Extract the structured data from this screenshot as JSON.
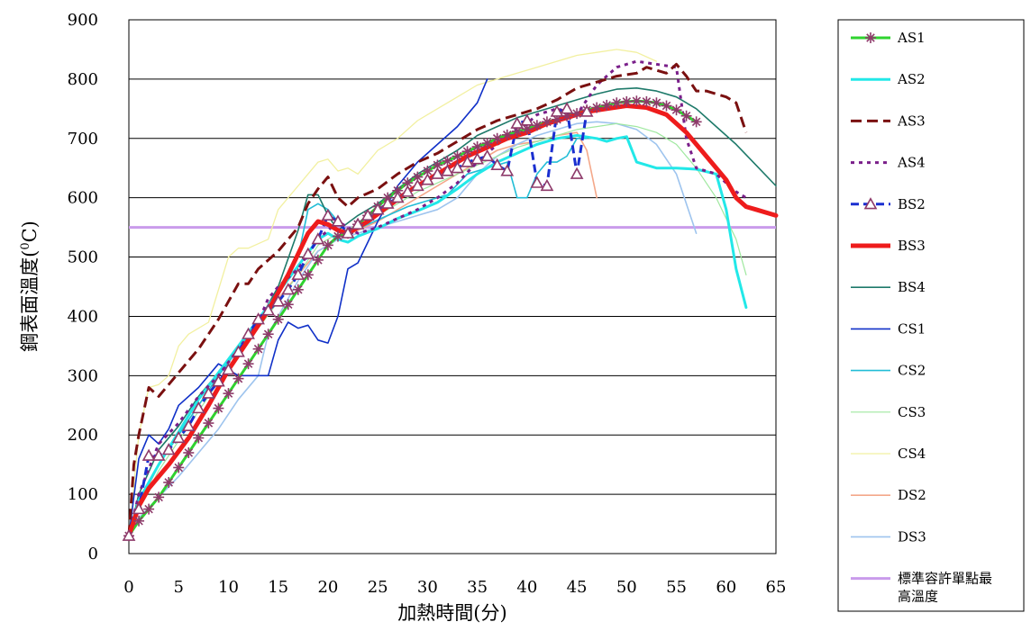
{
  "chart_data": {
    "type": "line",
    "title": "",
    "xlabel": "加熱時間(分)",
    "ylabel_main": "鋼表面溫度(",
    "ylabel_sup": "0",
    "ylabel_tail": "C)",
    "xlim": [
      0,
      65
    ],
    "ylim": [
      0,
      900
    ],
    "x_ticks": [
      "0",
      "5",
      "10",
      "15",
      "20",
      "25",
      "30",
      "35",
      "40",
      "45",
      "50",
      "55",
      "60",
      "65"
    ],
    "y_ticks": [
      "0",
      "100",
      "200",
      "300",
      "400",
      "500",
      "600",
      "700",
      "800",
      "900"
    ],
    "grid": "horizontal",
    "legend_position": "right",
    "reference_line": {
      "name": "標準容許單點最高溫度",
      "value": 550,
      "color": "#C99BEB"
    },
    "series": [
      {
        "name": "AS1",
        "color": "#2FD32F",
        "width": 3,
        "dash": "",
        "marker": "asterisk",
        "marker_color": "#8E3A6A",
        "x": [
          0,
          1,
          2,
          3,
          4,
          5,
          6,
          7,
          8,
          9,
          10,
          11,
          12,
          13,
          14,
          15,
          16,
          17,
          18,
          19,
          20,
          21,
          22,
          23,
          24,
          25,
          26,
          27,
          28,
          29,
          30,
          31,
          32,
          33,
          34,
          35,
          36,
          37,
          38,
          39,
          40,
          41,
          42,
          43,
          44,
          45,
          46,
          47,
          48,
          49,
          50,
          51,
          52,
          53,
          54,
          55,
          56,
          57
        ],
        "y": [
          30,
          55,
          75,
          95,
          120,
          145,
          170,
          195,
          220,
          245,
          270,
          295,
          320,
          345,
          370,
          395,
          420,
          445,
          470,
          495,
          520,
          535,
          540,
          555,
          570,
          585,
          600,
          612,
          625,
          635,
          645,
          655,
          662,
          670,
          678,
          686,
          692,
          700,
          706,
          712,
          716,
          722,
          728,
          732,
          738,
          742,
          748,
          752,
          756,
          760,
          762,
          763,
          762,
          760,
          755,
          748,
          738,
          728
        ]
      },
      {
        "name": "AS2",
        "color": "#22E8E8",
        "width": 3,
        "dash": "",
        "marker": "",
        "x": [
          0,
          1,
          3,
          5,
          7,
          9,
          11,
          13,
          15,
          17,
          19,
          20,
          21,
          22,
          23,
          25,
          27,
          29,
          31,
          33,
          35,
          37,
          39,
          41,
          43,
          45,
          47,
          48,
          49,
          50,
          51,
          53,
          55,
          57,
          59,
          60,
          61,
          62
        ],
        "y": [
          30,
          90,
          150,
          205,
          260,
          305,
          350,
          395,
          440,
          485,
          530,
          540,
          530,
          525,
          535,
          548,
          565,
          578,
          592,
          615,
          640,
          660,
          675,
          690,
          700,
          705,
          700,
          695,
          700,
          703,
          660,
          650,
          650,
          648,
          640,
          580,
          480,
          415
        ]
      },
      {
        "name": "AS3",
        "color": "#7A1010",
        "width": 3,
        "dash": "12,6",
        "marker": "",
        "x": [
          0,
          0.5,
          1,
          2,
          3,
          4,
          5,
          7,
          9,
          11,
          12,
          13,
          15,
          17,
          18,
          19,
          20,
          21,
          22,
          23,
          25,
          27,
          29,
          31,
          33,
          35,
          37,
          39,
          41,
          43,
          45,
          47,
          49,
          51,
          52,
          53,
          54,
          55,
          56,
          57,
          58,
          59,
          60,
          61,
          62
        ],
        "y": [
          30,
          150,
          200,
          280,
          265,
          285,
          305,
          345,
          395,
          455,
          455,
          480,
          510,
          550,
          590,
          615,
          635,
          600,
          585,
          600,
          615,
          640,
          660,
          675,
          695,
          715,
          730,
          740,
          750,
          765,
          785,
          795,
          805,
          810,
          820,
          815,
          810,
          825,
          805,
          780,
          780,
          775,
          770,
          760,
          710
        ]
      },
      {
        "name": "AS4",
        "color": "#7A1F8A",
        "width": 3,
        "dash": "4,5",
        "marker": "",
        "x": [
          0,
          1,
          3,
          5,
          7,
          9,
          11,
          13,
          14,
          15,
          17,
          19,
          21,
          23,
          25,
          27,
          29,
          31,
          33,
          35,
          37,
          39,
          41,
          43,
          45,
          47,
          49,
          51,
          53,
          55,
          56,
          57,
          59,
          61,
          62
        ],
        "y": [
          30,
          100,
          185,
          220,
          265,
          300,
          345,
          390,
          430,
          450,
          480,
          530,
          560,
          540,
          550,
          565,
          580,
          600,
          625,
          660,
          690,
          710,
          740,
          750,
          740,
          790,
          820,
          830,
          825,
          820,
          700,
          650,
          640,
          610,
          600
        ]
      },
      {
        "name": "BS2",
        "color": "#1A2FD0",
        "width": 3,
        "dash": "9,5",
        "marker": "triangle",
        "marker_color": "#8E3A6A",
        "x": [
          0,
          1,
          2,
          3,
          4,
          5,
          6,
          7,
          8,
          9,
          10,
          11,
          12,
          13,
          14,
          15,
          16,
          17,
          18,
          19,
          20,
          21,
          22,
          23,
          24,
          25,
          26,
          27,
          28,
          29,
          30,
          31,
          32,
          33,
          34,
          35,
          36,
          37,
          38,
          39,
          40,
          41,
          42,
          43,
          44,
          45,
          46
        ],
        "y": [
          30,
          75,
          165,
          165,
          175,
          195,
          215,
          245,
          270,
          290,
          310,
          340,
          370,
          395,
          410,
          425,
          445,
          470,
          505,
          530,
          570,
          560,
          540,
          555,
          570,
          580,
          590,
          600,
          610,
          620,
          630,
          640,
          645,
          650,
          660,
          665,
          670,
          655,
          645,
          725,
          730,
          625,
          620,
          745,
          750,
          640,
          745
        ]
      },
      {
        "name": "BS3",
        "color": "#EE1C1C",
        "width": 5,
        "dash": "",
        "marker": "",
        "x": [
          0,
          1,
          2,
          4,
          6,
          8,
          10,
          12,
          14,
          16,
          18,
          19,
          20,
          21,
          22,
          24,
          26,
          28,
          30,
          32,
          34,
          36,
          38,
          40,
          42,
          44,
          46,
          48,
          50,
          52,
          54,
          56,
          58,
          60,
          61,
          62,
          63,
          65
        ],
        "y": [
          30,
          80,
          110,
          150,
          195,
          250,
          310,
          360,
          410,
          470,
          540,
          560,
          555,
          545,
          540,
          560,
          585,
          610,
          630,
          650,
          670,
          685,
          700,
          710,
          725,
          735,
          745,
          750,
          755,
          752,
          740,
          710,
          670,
          630,
          600,
          585,
          580,
          570
        ]
      },
      {
        "name": "BS4",
        "color": "#1E7A6A",
        "width": 1.6,
        "dash": "",
        "marker": "",
        "x": [
          0,
          1,
          3,
          5,
          7,
          9,
          11,
          13,
          15,
          17,
          18,
          19,
          20,
          21,
          23,
          25,
          27,
          29,
          31,
          33,
          35,
          37,
          39,
          41,
          43,
          45,
          47,
          49,
          51,
          53,
          55,
          57,
          59,
          61,
          63,
          65
        ],
        "y": [
          30,
          100,
          175,
          215,
          265,
          305,
          350,
          390,
          450,
          545,
          605,
          605,
          570,
          545,
          570,
          590,
          615,
          640,
          660,
          680,
          705,
          720,
          735,
          745,
          755,
          765,
          775,
          783,
          785,
          780,
          770,
          750,
          720,
          690,
          655,
          620
        ]
      },
      {
        "name": "CS1",
        "color": "#1030C8",
        "width": 1.6,
        "dash": "",
        "marker": "",
        "x": [
          0,
          1,
          2,
          3,
          4,
          5,
          7,
          9,
          10,
          11,
          13,
          14,
          15,
          16,
          17,
          18,
          19,
          20,
          21,
          22,
          23,
          25,
          27,
          29,
          31,
          33,
          35,
          36
        ],
        "y": [
          30,
          160,
          200,
          185,
          210,
          250,
          280,
          320,
          310,
          300,
          300,
          300,
          360,
          390,
          380,
          385,
          360,
          355,
          400,
          480,
          490,
          560,
          620,
          660,
          690,
          720,
          760,
          800
        ]
      },
      {
        "name": "CS2",
        "color": "#22BDD6",
        "width": 1.6,
        "dash": "",
        "marker": "",
        "x": [
          0,
          1,
          3,
          5,
          7,
          9,
          11,
          13,
          15,
          17,
          18,
          19,
          20,
          21,
          22,
          24,
          26,
          28,
          30,
          32,
          34,
          36,
          38,
          39,
          40,
          41,
          42,
          43,
          44,
          45,
          46
        ],
        "y": [
          30,
          85,
          150,
          200,
          250,
          300,
          345,
          390,
          440,
          500,
          580,
          590,
          580,
          560,
          540,
          555,
          570,
          585,
          595,
          605,
          640,
          650,
          660,
          600,
          600,
          640,
          660,
          660,
          670,
          700,
          700
        ]
      },
      {
        "name": "CS3",
        "color": "#9FE89F",
        "width": 1.2,
        "dash": "",
        "marker": "",
        "x": [
          0,
          1,
          3,
          5,
          7,
          9,
          11,
          13,
          15,
          17,
          19,
          21,
          23,
          25,
          27,
          29,
          31,
          33,
          35,
          37,
          39,
          41,
          43,
          45,
          47,
          49,
          51,
          53,
          55,
          57,
          59,
          61,
          62
        ],
        "y": [
          30,
          75,
          140,
          190,
          240,
          290,
          335,
          380,
          425,
          470,
          520,
          540,
          555,
          570,
          590,
          610,
          625,
          640,
          655,
          670,
          685,
          695,
          705,
          715,
          720,
          725,
          720,
          710,
          690,
          650,
          600,
          530,
          470
        ]
      },
      {
        "name": "CS4",
        "color": "#F2F0A0",
        "width": 1.3,
        "dash": "",
        "marker": "",
        "x": [
          0,
          1,
          2,
          3,
          4,
          5,
          6,
          8,
          10,
          11,
          12,
          14,
          15,
          16,
          17,
          18,
          19,
          20,
          21,
          22,
          23,
          25,
          27,
          29,
          31,
          33,
          35,
          37,
          39,
          41,
          43,
          45,
          47,
          49,
          51,
          53
        ],
        "y": [
          30,
          200,
          280,
          285,
          300,
          350,
          370,
          390,
          500,
          515,
          515,
          530,
          580,
          600,
          620,
          640,
          660,
          665,
          645,
          650,
          640,
          680,
          700,
          730,
          750,
          770,
          790,
          800,
          810,
          820,
          830,
          840,
          845,
          850,
          845,
          830
        ]
      },
      {
        "name": "DS2",
        "color": "#F4A88A",
        "width": 1.6,
        "dash": "",
        "marker": "",
        "x": [
          0,
          1,
          3,
          5,
          7,
          9,
          11,
          13,
          15,
          17,
          19,
          21,
          23,
          25,
          27,
          29,
          31,
          33,
          35,
          37,
          39,
          41,
          43,
          45,
          46,
          47
        ],
        "y": [
          30,
          80,
          150,
          200,
          250,
          300,
          345,
          390,
          430,
          470,
          510,
          530,
          545,
          560,
          580,
          600,
          620,
          640,
          660,
          680,
          690,
          695,
          705,
          710,
          680,
          600
        ]
      },
      {
        "name": "DS3",
        "color": "#9EC4EE",
        "width": 1.6,
        "dash": "",
        "marker": "",
        "x": [
          0,
          1,
          3,
          5,
          7,
          9,
          11,
          13,
          14,
          15,
          17,
          19,
          21,
          23,
          25,
          27,
          29,
          31,
          33,
          35,
          37,
          39,
          41,
          43,
          45,
          47,
          49,
          51,
          53,
          55,
          57
        ],
        "y": [
          30,
          60,
          95,
          130,
          170,
          210,
          260,
          300,
          370,
          400,
          460,
          510,
          530,
          540,
          550,
          560,
          570,
          580,
          600,
          640,
          670,
          690,
          705,
          715,
          725,
          728,
          725,
          715,
          690,
          640,
          540
        ]
      }
    ]
  }
}
